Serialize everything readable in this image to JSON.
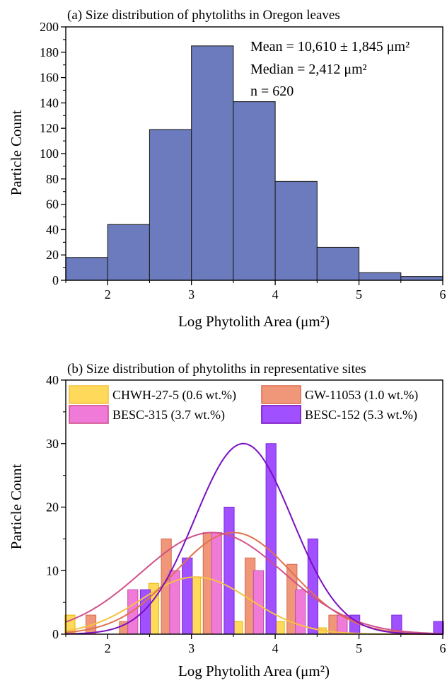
{
  "chart_data": [
    {
      "type": "bar",
      "title": "(a) Size distribution of phytoliths in Oregon leaves",
      "xlabel": "Log Phytolith Area (μm²)",
      "ylabel": "Particle Count",
      "xlim": [
        1.5,
        6
      ],
      "ylim": [
        0,
        200
      ],
      "x_ticks": [
        2,
        3,
        4,
        5,
        6
      ],
      "y_ticks": [
        0,
        20,
        40,
        60,
        80,
        100,
        120,
        140,
        160,
        180,
        200
      ],
      "bar_color": "#6b7bbd",
      "bins": [
        {
          "from": 1.5,
          "to": 2.0,
          "value": 18
        },
        {
          "from": 2.0,
          "to": 2.5,
          "value": 44
        },
        {
          "from": 2.5,
          "to": 3.0,
          "value": 119
        },
        {
          "from": 3.0,
          "to": 3.5,
          "value": 185
        },
        {
          "from": 3.5,
          "to": 4.0,
          "value": 141
        },
        {
          "from": 4.0,
          "to": 4.5,
          "value": 78
        },
        {
          "from": 4.5,
          "to": 5.0,
          "value": 26
        },
        {
          "from": 5.0,
          "to": 5.5,
          "value": 6
        },
        {
          "from": 5.5,
          "to": 6.0,
          "value": 3
        }
      ],
      "annotations": [
        "Mean = 10,610 ± 1,845 μm²",
        "Median = 2,412 μm²",
        "n = 620"
      ]
    },
    {
      "type": "bar",
      "title": "(b) Size distribution of phytoliths in representative sites",
      "xlabel": "Log Phytolith Area (μm²)",
      "ylabel": "Particle Count",
      "xlim": [
        1.5,
        6
      ],
      "ylim": [
        0,
        40
      ],
      "x_ticks": [
        2,
        3,
        4,
        5,
        6
      ],
      "y_ticks": [
        0,
        10,
        20,
        30,
        40
      ],
      "legend_position": "top",
      "series": [
        {
          "name": "CHWH-27-5 (0.6 wt.%)",
          "color": "#ffd95a",
          "edge": "#e6b800",
          "curve_color": "#f5c242",
          "x": [
            1.55,
            2.55,
            3.05,
            3.55,
            4.05,
            4.55
          ],
          "values": [
            3,
            8,
            9,
            2,
            2,
            1
          ],
          "fit": {
            "peak": 9,
            "center": 3.05,
            "sigma": 0.65
          }
        },
        {
          "name": "GW-11053 (1.0 wt.%)",
          "color": "#f0977a",
          "edge": "#d46a4c",
          "curve_color": "#e07050",
          "x": [
            1.8,
            2.2,
            2.7,
            3.2,
            3.7,
            4.2,
            4.7
          ],
          "values": [
            3,
            2,
            15,
            16,
            12,
            11,
            3
          ],
          "fit": {
            "peak": 16,
            "center": 3.5,
            "sigma": 0.7
          }
        },
        {
          "name": "BESC-315 (3.7 wt.%)",
          "color": "#f07ad8",
          "edge": "#c050a8",
          "curve_color": "#d0508a",
          "x": [
            2.3,
            2.8,
            3.3,
            3.8,
            4.3,
            4.8
          ],
          "values": [
            7,
            10,
            16,
            10,
            7,
            3
          ],
          "fit": {
            "peak": 16,
            "center": 3.25,
            "sigma": 0.85
          }
        },
        {
          "name": "BESC-152 (5.3 wt.%)",
          "color": "#a050ff",
          "edge": "#7a2ad8",
          "curve_color": "#7a10c0",
          "x": [
            2.45,
            2.95,
            3.45,
            3.95,
            4.45,
            4.95,
            5.45,
            5.95
          ],
          "values": [
            7,
            12,
            20,
            30,
            15,
            3,
            3,
            2
          ],
          "fit": {
            "peak": 30,
            "center": 3.62,
            "sigma": 0.58
          }
        }
      ]
    }
  ]
}
